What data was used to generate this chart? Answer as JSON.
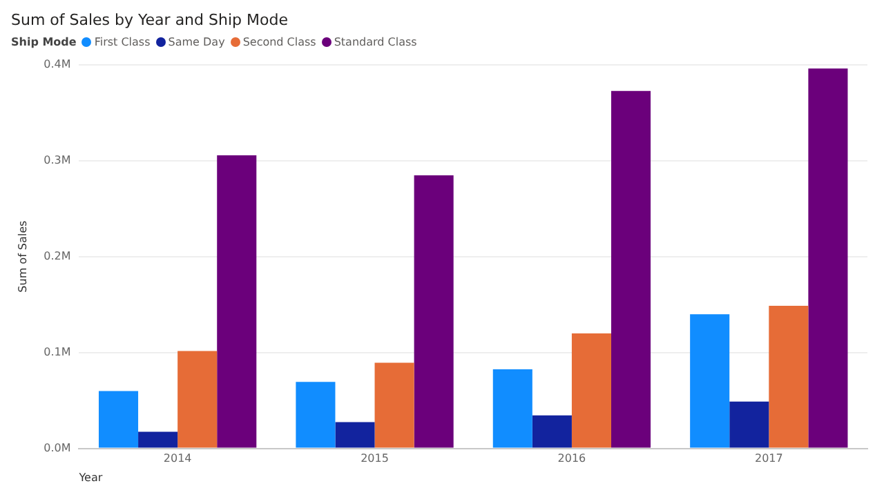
{
  "chart_data": {
    "type": "bar",
    "title": "Sum of Sales by Year and Ship Mode",
    "xlabel": "Year",
    "ylabel": "Sum of Sales",
    "legend_title": "Ship Mode",
    "legend": "top left",
    "categories": [
      "2014",
      "2015",
      "2016",
      "2017"
    ],
    "series": [
      {
        "name": "First Class",
        "color": "#118dff",
        "values": [
          59700,
          69300,
          82400,
          139900
        ]
      },
      {
        "name": "Same Day",
        "color": "#12239e",
        "values": [
          17400,
          27400,
          34400,
          48800
        ]
      },
      {
        "name": "Second Class",
        "color": "#e66c37",
        "values": [
          101600,
          89300,
          119900,
          148600
        ]
      },
      {
        "name": "Standard Class",
        "color": "#6b007b",
        "values": [
          305500,
          284600,
          372500,
          396000
        ]
      }
    ],
    "ylim": [
      0,
      400000
    ],
    "yticks": [
      {
        "value": 0,
        "label": "0.0M"
      },
      {
        "value": 100000,
        "label": "0.1M"
      },
      {
        "value": 200000,
        "label": "0.2M"
      },
      {
        "value": 300000,
        "label": "0.3M"
      },
      {
        "value": 400000,
        "label": "0.4M"
      }
    ],
    "grid": "y"
  }
}
